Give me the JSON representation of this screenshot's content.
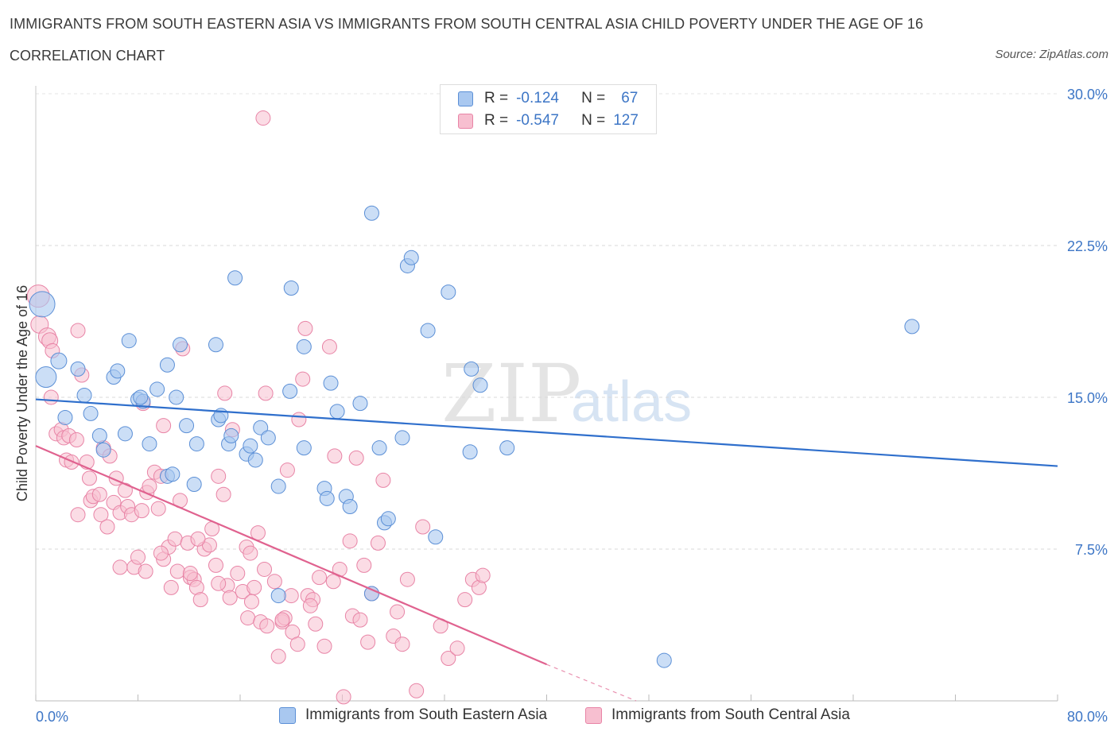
{
  "title": "IMMIGRANTS FROM SOUTH EASTERN ASIA VS IMMIGRANTS FROM SOUTH CENTRAL ASIA CHILD POVERTY UNDER THE AGE OF 16",
  "subtitle": "CORRELATION CHART",
  "source": "Source: ZipAtlas.com",
  "watermark": {
    "zip": "ZIP",
    "atlas": "atlas"
  },
  "legend": {
    "r_label": "R =",
    "n_label": "N =",
    "series": [
      {
        "r": "-0.124",
        "n": "67"
      },
      {
        "r": "-0.547",
        "n": "127"
      }
    ]
  },
  "colors": {
    "blue_fill": "#a9c8f0",
    "blue_stroke": "#5b8fd6",
    "blue_line": "#2f6fcc",
    "pink_fill": "#f7bfd0",
    "pink_stroke": "#e884a6",
    "pink_line": "#e0628f",
    "axis_text": "#3d76c6"
  },
  "chart_data": {
    "type": "scatter",
    "title": "IMMIGRANTS FROM SOUTH EASTERN ASIA VS IMMIGRANTS FROM SOUTH CENTRAL ASIA CHILD POVERTY UNDER THE AGE OF 16",
    "xlabel": "",
    "ylabel": "Child Poverty Under the Age of 16",
    "xlim": [
      0,
      80
    ],
    "ylim": [
      0,
      30
    ],
    "x_tick_labels": [
      "0.0%",
      "80.0%"
    ],
    "y_ticks": [
      7.5,
      15.0,
      22.5,
      30.0
    ],
    "y_tick_labels": [
      "7.5%",
      "15.0%",
      "22.5%",
      "30.0%"
    ],
    "series": [
      {
        "name": "Immigrants from South Eastern Asia",
        "r": -0.124,
        "n": 67,
        "trend": {
          "x": [
            0,
            80
          ],
          "y": [
            14.9,
            11.6
          ]
        },
        "points": [
          [
            0.5,
            19.6,
            16
          ],
          [
            0.8,
            16.0,
            13
          ],
          [
            1.8,
            16.8,
            10
          ],
          [
            3.3,
            16.4,
            9
          ],
          [
            2.3,
            14.0,
            9
          ],
          [
            3.8,
            15.1,
            9
          ],
          [
            4.3,
            14.2,
            9
          ],
          [
            6.1,
            16.0,
            9
          ],
          [
            6.4,
            16.3,
            9
          ],
          [
            7.3,
            17.8,
            9
          ],
          [
            7.0,
            13.2,
            9
          ],
          [
            5.3,
            12.4,
            9
          ],
          [
            5.0,
            13.1,
            9
          ],
          [
            8.0,
            14.9,
            9
          ],
          [
            8.4,
            14.8,
            9
          ],
          [
            8.9,
            12.7,
            9
          ],
          [
            9.5,
            15.4,
            9
          ],
          [
            10.3,
            11.1,
            9
          ],
          [
            10.3,
            16.6,
            9
          ],
          [
            11.0,
            15.0,
            9
          ],
          [
            11.3,
            17.6,
            9
          ],
          [
            11.8,
            13.6,
            9
          ],
          [
            12.4,
            10.7,
            9
          ],
          [
            12.6,
            12.7,
            9
          ],
          [
            14.3,
            13.9,
            9
          ],
          [
            14.5,
            14.1,
            9
          ],
          [
            14.1,
            17.6,
            9
          ],
          [
            15.1,
            12.7,
            9
          ],
          [
            15.3,
            13.1,
            9
          ],
          [
            15.6,
            20.9,
            9
          ],
          [
            16.5,
            12.2,
            9
          ],
          [
            16.8,
            12.6,
            9
          ],
          [
            17.2,
            11.9,
            9
          ],
          [
            17.6,
            13.5,
            9
          ],
          [
            18.2,
            13.0,
            9
          ],
          [
            19.0,
            10.6,
            9
          ],
          [
            20.0,
            20.4,
            9
          ],
          [
            19.9,
            15.3,
            9
          ],
          [
            21.0,
            17.5,
            9
          ],
          [
            21.0,
            12.5,
            9
          ],
          [
            22.6,
            10.5,
            9
          ],
          [
            22.8,
            10.0,
            9
          ],
          [
            23.1,
            15.7,
            9
          ],
          [
            23.6,
            14.3,
            9
          ],
          [
            24.3,
            10.1,
            9
          ],
          [
            24.6,
            9.6,
            9
          ],
          [
            25.4,
            14.7,
            9
          ],
          [
            26.3,
            24.1,
            9
          ],
          [
            26.9,
            12.5,
            9
          ],
          [
            27.3,
            8.8,
            9
          ],
          [
            27.6,
            9.0,
            9
          ],
          [
            28.7,
            13.0,
            9
          ],
          [
            29.1,
            21.5,
            9
          ],
          [
            29.4,
            21.9,
            9
          ],
          [
            30.7,
            18.3,
            9
          ],
          [
            31.3,
            8.1,
            9
          ],
          [
            32.3,
            20.2,
            9
          ],
          [
            34.0,
            12.3,
            9
          ],
          [
            34.1,
            16.4,
            9
          ],
          [
            34.8,
            15.6,
            9
          ],
          [
            36.9,
            12.5,
            9
          ],
          [
            26.3,
            5.3,
            9
          ],
          [
            49.2,
            2.0,
            9
          ],
          [
            68.6,
            18.5,
            9
          ],
          [
            19.0,
            5.2,
            9
          ],
          [
            10.7,
            11.2,
            9
          ],
          [
            8.2,
            15.0,
            9
          ]
        ]
      },
      {
        "name": "Immigrants from South Central Asia",
        "r": -0.547,
        "n": 127,
        "trend": {
          "x": [
            0,
            40
          ],
          "y": [
            12.6,
            1.8
          ]
        },
        "trend_dashed_to": {
          "x": 47,
          "y": 0.0
        },
        "points": [
          [
            0.2,
            20.0,
            14
          ],
          [
            0.3,
            18.6,
            11
          ],
          [
            0.9,
            18.0,
            11
          ],
          [
            1.1,
            17.8,
            10
          ],
          [
            1.3,
            17.3,
            9
          ],
          [
            1.2,
            15.0,
            9
          ],
          [
            1.6,
            13.2,
            9
          ],
          [
            2.0,
            13.4,
            9
          ],
          [
            2.2,
            13.0,
            9
          ],
          [
            2.6,
            13.1,
            9
          ],
          [
            3.2,
            12.9,
            9
          ],
          [
            2.4,
            11.9,
            9
          ],
          [
            2.8,
            11.8,
            9
          ],
          [
            3.3,
            18.3,
            9
          ],
          [
            3.6,
            16.1,
            9
          ],
          [
            4.0,
            11.8,
            9
          ],
          [
            4.2,
            11.0,
            9
          ],
          [
            4.3,
            9.9,
            9
          ],
          [
            4.5,
            10.1,
            9
          ],
          [
            5.0,
            10.2,
            9
          ],
          [
            5.3,
            12.5,
            9
          ],
          [
            5.1,
            9.2,
            9
          ],
          [
            5.6,
            8.6,
            9
          ],
          [
            5.8,
            12.1,
            9
          ],
          [
            6.3,
            11.0,
            9
          ],
          [
            6.1,
            9.8,
            9
          ],
          [
            6.6,
            9.3,
            9
          ],
          [
            7.0,
            10.4,
            9
          ],
          [
            7.2,
            9.6,
            9
          ],
          [
            7.5,
            9.2,
            9
          ],
          [
            7.7,
            6.6,
            9
          ],
          [
            8.0,
            7.1,
            9
          ],
          [
            8.3,
            9.4,
            9
          ],
          [
            8.7,
            10.3,
            9
          ],
          [
            8.9,
            10.6,
            9
          ],
          [
            8.6,
            6.4,
            9
          ],
          [
            9.3,
            11.3,
            9
          ],
          [
            9.6,
            9.5,
            9
          ],
          [
            9.8,
            11.1,
            9
          ],
          [
            10.0,
            7.0,
            9
          ],
          [
            10.4,
            7.6,
            9
          ],
          [
            10.6,
            5.6,
            9
          ],
          [
            10.9,
            8.0,
            9
          ],
          [
            11.1,
            6.4,
            9
          ],
          [
            11.3,
            9.9,
            9
          ],
          [
            11.9,
            7.8,
            9
          ],
          [
            12.1,
            6.1,
            9
          ],
          [
            12.4,
            6.0,
            9
          ],
          [
            12.6,
            5.6,
            9
          ],
          [
            12.9,
            5.0,
            9
          ],
          [
            13.2,
            7.5,
            9
          ],
          [
            13.6,
            7.7,
            9
          ],
          [
            13.8,
            8.5,
            9
          ],
          [
            14.1,
            6.7,
            9
          ],
          [
            14.3,
            11.1,
            9
          ],
          [
            14.7,
            10.2,
            9
          ],
          [
            15.0,
            5.7,
            9
          ],
          [
            15.2,
            5.1,
            9
          ],
          [
            15.4,
            13.4,
            9
          ],
          [
            15.8,
            6.3,
            9
          ],
          [
            16.2,
            5.4,
            9
          ],
          [
            16.5,
            7.6,
            9
          ],
          [
            16.8,
            7.3,
            9
          ],
          [
            16.6,
            4.1,
            9
          ],
          [
            17.1,
            5.6,
            9
          ],
          [
            17.4,
            8.3,
            9
          ],
          [
            17.6,
            3.9,
            9
          ],
          [
            17.9,
            6.5,
            9
          ],
          [
            18.1,
            3.7,
            9
          ],
          [
            18.7,
            5.9,
            9
          ],
          [
            19.0,
            2.2,
            9
          ],
          [
            19.3,
            3.9,
            9
          ],
          [
            19.5,
            4.1,
            9
          ],
          [
            19.7,
            11.4,
            9
          ],
          [
            20.0,
            5.2,
            9
          ],
          [
            20.1,
            3.4,
            9
          ],
          [
            20.5,
            2.8,
            9
          ],
          [
            20.6,
            13.9,
            9
          ],
          [
            20.9,
            15.9,
            9
          ],
          [
            21.1,
            18.4,
            9
          ],
          [
            21.3,
            5.2,
            9
          ],
          [
            21.7,
            5.0,
            9
          ],
          [
            21.9,
            3.8,
            9
          ],
          [
            22.2,
            6.1,
            9
          ],
          [
            22.6,
            2.7,
            9
          ],
          [
            23.0,
            17.5,
            9
          ],
          [
            23.4,
            12.1,
            9
          ],
          [
            23.8,
            6.5,
            9
          ],
          [
            24.1,
            0.2,
            9
          ],
          [
            24.6,
            7.9,
            9
          ],
          [
            24.8,
            4.2,
            9
          ],
          [
            25.1,
            12.0,
            9
          ],
          [
            25.4,
            4.0,
            9
          ],
          [
            25.7,
            6.7,
            9
          ],
          [
            26.0,
            2.9,
            9
          ],
          [
            26.3,
            5.3,
            9
          ],
          [
            26.8,
            7.8,
            9
          ],
          [
            27.2,
            10.9,
            9
          ],
          [
            28.0,
            3.2,
            9
          ],
          [
            28.3,
            4.4,
            9
          ],
          [
            28.7,
            2.8,
            9
          ],
          [
            29.1,
            6.0,
            9
          ],
          [
            29.8,
            0.5,
            9
          ],
          [
            30.3,
            8.6,
            9
          ],
          [
            31.7,
            3.7,
            9
          ],
          [
            32.3,
            2.1,
            9
          ],
          [
            33.0,
            2.6,
            9
          ],
          [
            33.6,
            5.0,
            9
          ],
          [
            34.2,
            6.0,
            9
          ],
          [
            34.7,
            5.6,
            9
          ],
          [
            35.0,
            6.2,
            9
          ],
          [
            17.8,
            28.8,
            9
          ],
          [
            8.4,
            14.7,
            9
          ],
          [
            10.0,
            13.6,
            9
          ],
          [
            11.5,
            17.4,
            9
          ],
          [
            14.8,
            15.2,
            9
          ],
          [
            18.0,
            15.2,
            9
          ],
          [
            3.3,
            9.2,
            9
          ],
          [
            6.6,
            6.6,
            9
          ],
          [
            12.7,
            8.0,
            9
          ],
          [
            9.8,
            7.3,
            9
          ],
          [
            12.1,
            6.3,
            9
          ],
          [
            14.3,
            5.8,
            9
          ],
          [
            19.3,
            4.0,
            9
          ],
          [
            21.5,
            4.7,
            9
          ],
          [
            16.9,
            4.9,
            9
          ],
          [
            23.3,
            5.9,
            9
          ]
        ]
      }
    ]
  },
  "bottom_legend": {
    "items": [
      {
        "label": "Immigrants from South Eastern Asia"
      },
      {
        "label": "Immigrants from South Central Asia"
      }
    ]
  }
}
